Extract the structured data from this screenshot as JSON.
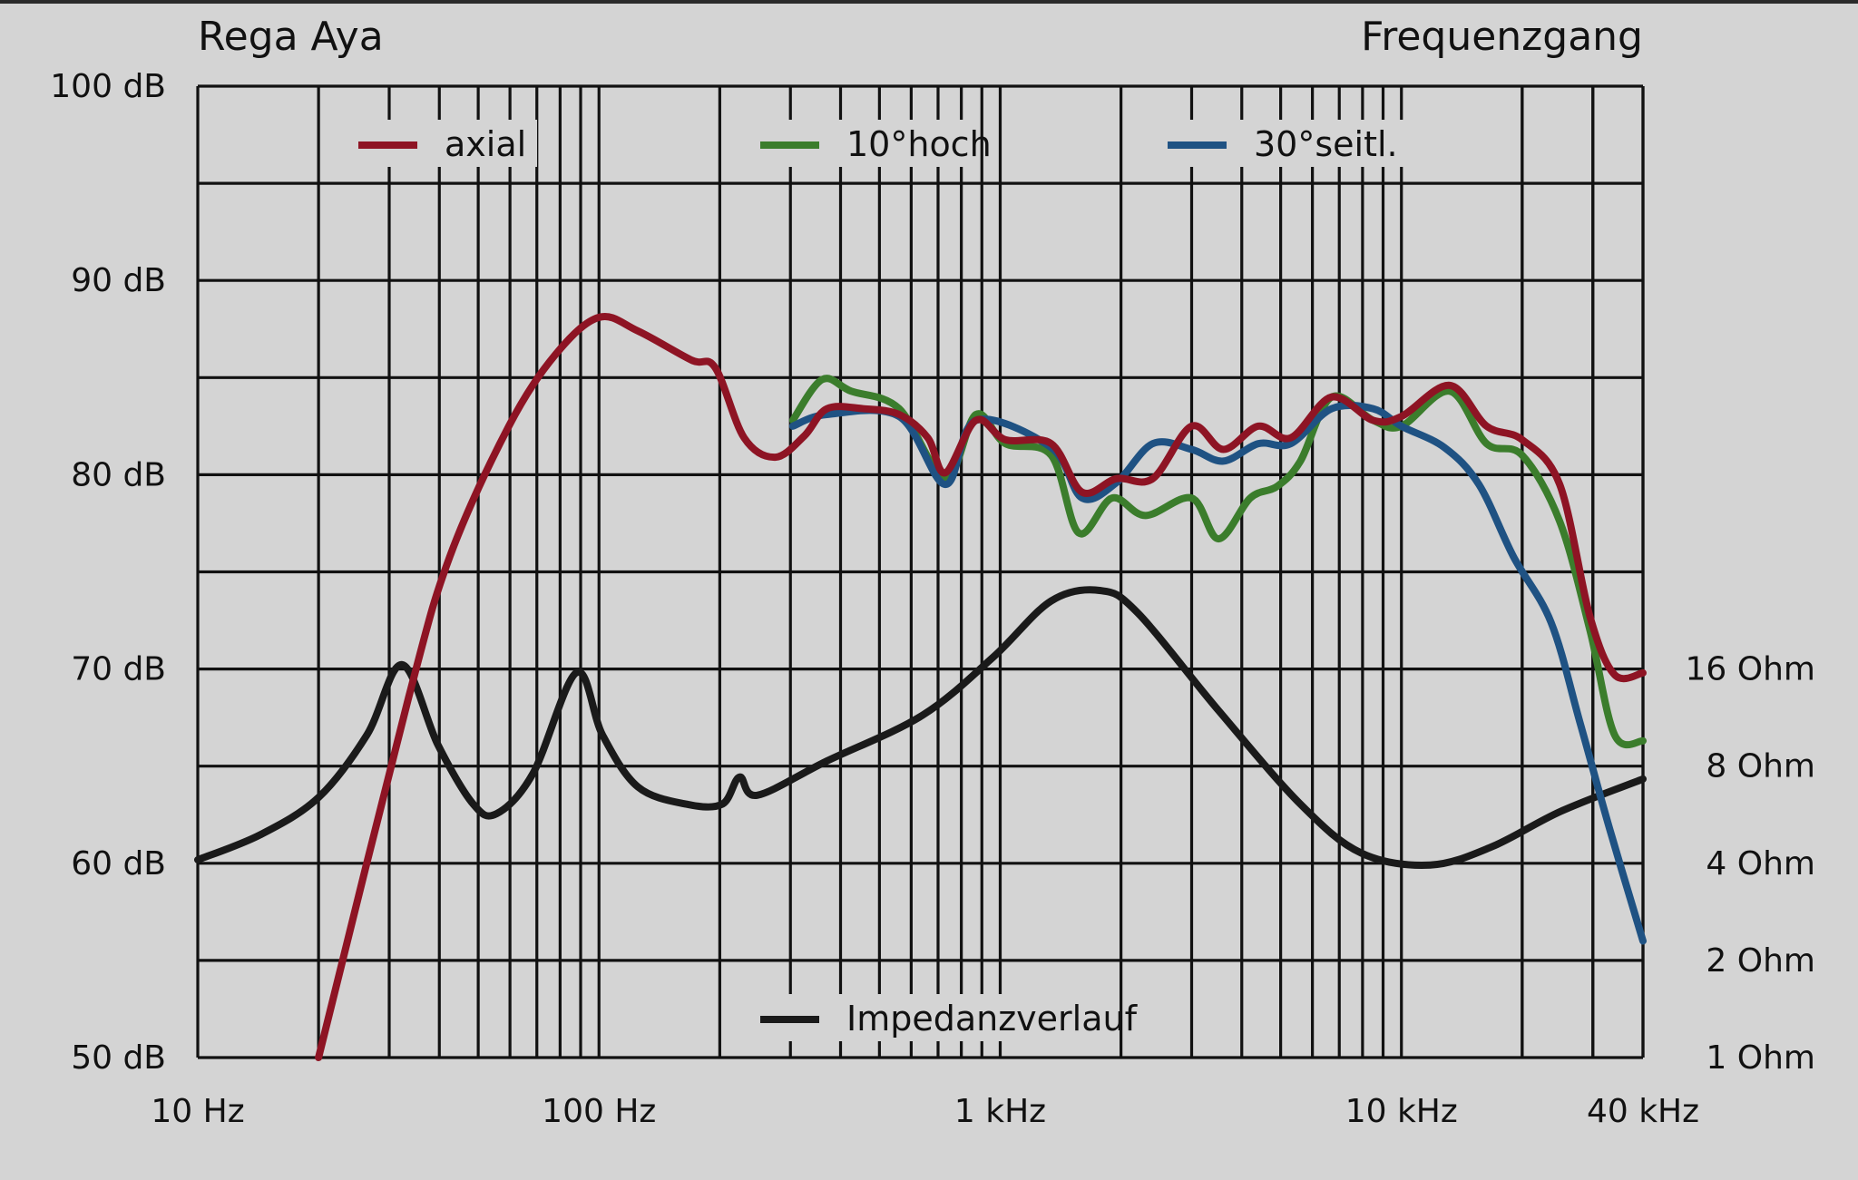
{
  "chart_data": {
    "type": "line",
    "title": "Rega Aya",
    "subtitle": "Frequenzgang",
    "x_scale": "log",
    "xlim": [
      10,
      40000
    ],
    "ylim": [
      50,
      100
    ],
    "grid": true,
    "x_tick_labels": [
      {
        "value": 10,
        "label": "10 Hz"
      },
      {
        "value": 100,
        "label": "100 Hz"
      },
      {
        "value": 1000,
        "label": "1 kHz"
      },
      {
        "value": 10000,
        "label": "10 kHz"
      },
      {
        "value": 40000,
        "label": "40 kHz"
      }
    ],
    "y_tick_labels": [
      {
        "value": 100,
        "label": "100 dB"
      },
      {
        "value": 90,
        "label": "90 dB"
      },
      {
        "value": 80,
        "label": "80 dB"
      },
      {
        "value": 70,
        "label": "70 dB"
      },
      {
        "value": 60,
        "label": "60 dB"
      },
      {
        "value": 50,
        "label": "50 dB"
      }
    ],
    "y2_tick_labels": [
      {
        "value": 16,
        "label": "16 Ohm"
      },
      {
        "value": 8,
        "label": "8 Ohm"
      },
      {
        "value": 4,
        "label": "4 Ohm"
      },
      {
        "value": 2,
        "label": "2 Ohm"
      },
      {
        "value": 1,
        "label": "1 Ohm"
      }
    ],
    "y2_scale": "log2",
    "legend_placement": "top",
    "series": [
      {
        "name": "axial",
        "color": "#8e1424",
        "axis": "left",
        "x": [
          20,
          33.5,
          42.5,
          59.6,
          78,
          100,
          125,
          170,
          195,
          230,
          275,
          325,
          370,
          455,
          560,
          660,
          730,
          870,
          1030,
          1340,
          1600,
          1950,
          2400,
          3000,
          3600,
          4400,
          5300,
          6700,
          8500,
          10000,
          13200,
          16300,
          20000,
          24800,
          29500,
          34000,
          40000
        ],
        "y": [
          50,
          68.5,
          75.8,
          82.5,
          86.2,
          88.1,
          87.4,
          85.9,
          85.5,
          81.9,
          80.9,
          82,
          83.4,
          83.4,
          83.1,
          81.9,
          80.1,
          82.8,
          81.8,
          81.6,
          79.1,
          79.8,
          79.8,
          82.5,
          81.3,
          82.5,
          81.9,
          84,
          82.8,
          83,
          84.6,
          82.5,
          81.8,
          79.5,
          72.7,
          69.7,
          69.8
        ]
      },
      {
        "name": "10°hoch",
        "color": "#3b7d2c",
        "axis": "left",
        "x": [
          304,
          360,
          425,
          560,
          730,
          870,
          1030,
          1340,
          1570,
          1900,
          2300,
          3000,
          3500,
          4200,
          4900,
          5600,
          6700,
          8500,
          10000,
          13200,
          16300,
          20000,
          24800,
          29500,
          34000,
          40000
        ],
        "y": [
          82.8,
          84.9,
          84.3,
          83.4,
          79.8,
          83.1,
          81.6,
          81,
          77,
          78.8,
          77.9,
          78.8,
          76.7,
          78.8,
          79.4,
          80.7,
          84,
          82.8,
          82.5,
          84.3,
          81.6,
          81,
          77.6,
          72,
          66.6,
          66.3
        ]
      },
      {
        "name": "30°seitl.",
        "color": "#1f5283",
        "axis": "left",
        "x": [
          304,
          370,
          560,
          730,
          870,
          1340,
          1600,
          1950,
          2400,
          3000,
          3600,
          4400,
          5300,
          6700,
          8500,
          10000,
          12800,
          15600,
          19000,
          23600,
          27900,
          33000,
          40000
        ],
        "y": [
          82.5,
          83.1,
          83,
          79.5,
          82.8,
          81.4,
          78.8,
          79.6,
          81.6,
          81.3,
          80.7,
          81.6,
          81.6,
          83.4,
          83.4,
          82.5,
          81.4,
          79.5,
          75.8,
          72.4,
          67.2,
          61.8,
          56
        ]
      },
      {
        "name": "Impedanzverlauf",
        "color": "#1a1a1a",
        "axis": "right",
        "unit": "Ohm",
        "x": [
          10,
          14.3,
          20,
          26.4,
          32.3,
          39.7,
          48.6,
          55.6,
          68.5,
          87.9,
          102,
          125,
          165,
          203,
          224,
          248,
          370,
          640,
          960,
          1340,
          1780,
          2200,
          3500,
          5600,
          7950,
          11800,
          16800,
          25000,
          40000
        ],
        "y": [
          4.1,
          4.9,
          6.4,
          10,
          16.5,
          9.3,
          6.1,
          5.7,
          7.6,
          15.6,
          10,
          6.9,
          6.1,
          6.1,
          7.4,
          6.5,
          8.3,
          11.5,
          17.4,
          26,
          28,
          23.9,
          11.9,
          6.1,
          4.3,
          3.95,
          4.5,
          5.8,
          7.3
        ]
      }
    ]
  }
}
